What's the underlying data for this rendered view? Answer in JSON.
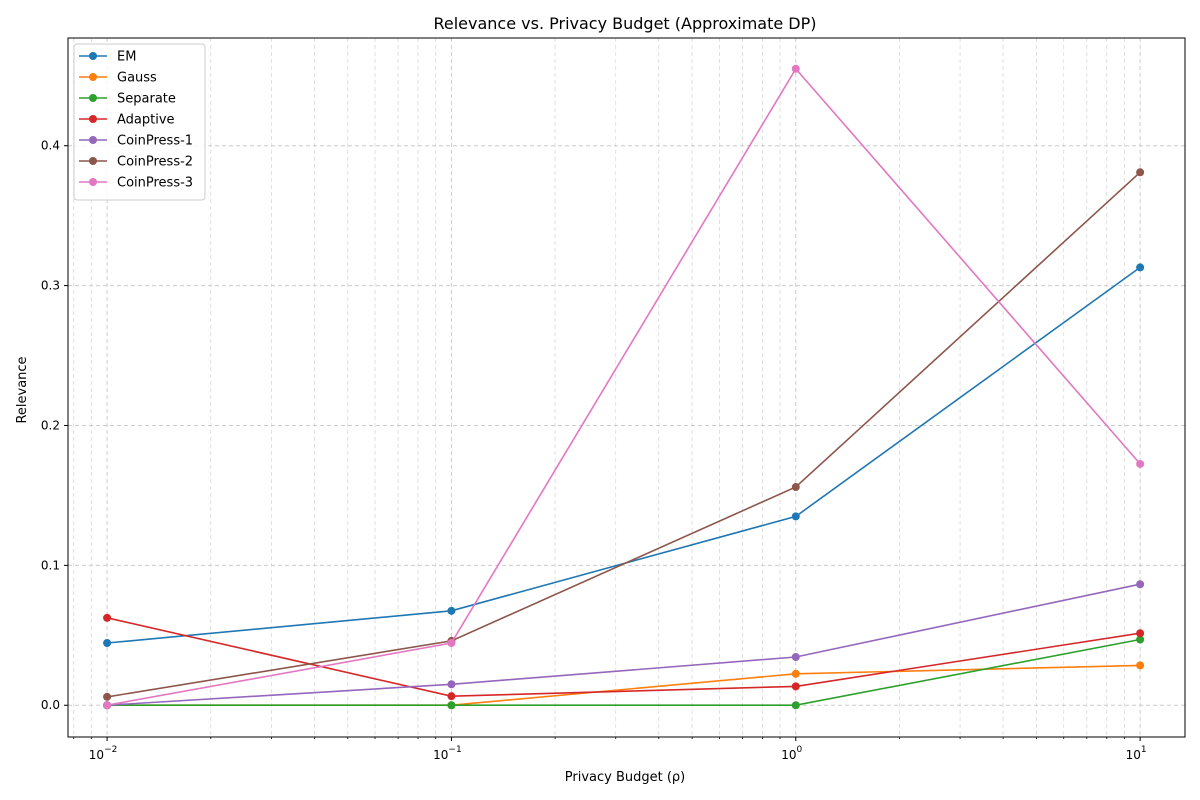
{
  "chart_data": {
    "type": "line",
    "title": "Relevance vs. Privacy Budget (Approximate DP)",
    "xlabel": "Privacy Budget (ρ)",
    "ylabel": "Relevance",
    "x_scale": "log",
    "x": [
      0.01,
      0.1,
      1,
      10
    ],
    "xlim": [
      0.0077,
      13.5
    ],
    "ylim": [
      -0.0227,
      0.477
    ],
    "x_ticks": [
      {
        "value": 0.01,
        "base": "10",
        "exp": "−2"
      },
      {
        "value": 0.1,
        "base": "10",
        "exp": "−1"
      },
      {
        "value": 1,
        "base": "10",
        "exp": "0"
      },
      {
        "value": 10,
        "base": "10",
        "exp": "1"
      }
    ],
    "y_ticks": [
      {
        "value": 0.0,
        "label": "0.0"
      },
      {
        "value": 0.1,
        "label": "0.1"
      },
      {
        "value": 0.2,
        "label": "0.2"
      },
      {
        "value": 0.3,
        "label": "0.3"
      },
      {
        "value": 0.4,
        "label": "0.4"
      }
    ],
    "grid": true,
    "legend_position": "top-left",
    "series": [
      {
        "name": "EM",
        "color": "#1f77b4",
        "values": [
          0.0445,
          0.0675,
          0.135,
          0.313
        ]
      },
      {
        "name": "Gauss",
        "color": "#ff7f0e",
        "values": [
          0.0,
          0.0,
          0.0225,
          0.0285
        ]
      },
      {
        "name": "Separate",
        "color": "#2ca02c",
        "values": [
          0.0,
          0.0,
          0.0,
          0.047
        ]
      },
      {
        "name": "Adaptive",
        "color": "#d62728",
        "values": [
          0.0625,
          0.0065,
          0.0135,
          0.0515
        ]
      },
      {
        "name": "CoinPress-1",
        "color": "#9467bd",
        "values": [
          0.0,
          0.015,
          0.0345,
          0.0865
        ]
      },
      {
        "name": "CoinPress-2",
        "color": "#8c564b",
        "values": [
          0.006,
          0.046,
          0.156,
          0.381
        ]
      },
      {
        "name": "CoinPress-3",
        "color": "#e377c2",
        "values": [
          0.0,
          0.0445,
          0.455,
          0.1725
        ]
      }
    ]
  }
}
